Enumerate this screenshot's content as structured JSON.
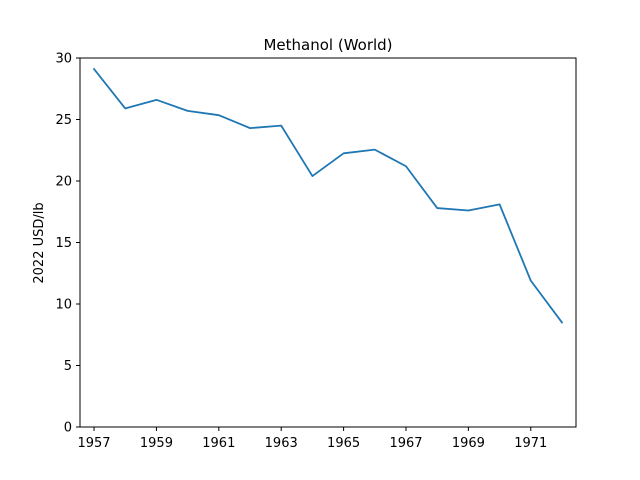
{
  "chart_data": {
    "type": "line",
    "title": "Methanol (World)",
    "xlabel": "",
    "ylabel": "2022 USD/lb",
    "xlim": [
      1956.55,
      1972.45
    ],
    "ylim": [
      0,
      30
    ],
    "xticks": [
      1957,
      1959,
      1961,
      1963,
      1965,
      1967,
      1969,
      1971
    ],
    "yticks": [
      0,
      5,
      10,
      15,
      20,
      25,
      30
    ],
    "grid": false,
    "series": [
      {
        "color": "#1f77b4",
        "x": [
          1957,
          1958,
          1959,
          1960,
          1961,
          1962,
          1963,
          1964,
          1965,
          1966,
          1967,
          1968,
          1969,
          1970,
          1971,
          1972
        ],
        "y": [
          29.1,
          25.9,
          26.6,
          25.7,
          25.35,
          24.3,
          24.5,
          20.4,
          22.25,
          22.55,
          21.2,
          17.8,
          17.6,
          18.1,
          11.9,
          8.5
        ]
      }
    ]
  }
}
